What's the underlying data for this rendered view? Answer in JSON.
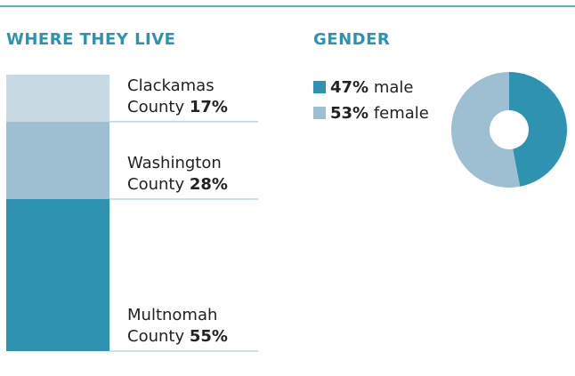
{
  "chart_data": [
    {
      "type": "stacked_bar",
      "title": "WHERE THEY LIVE",
      "series": [
        {
          "name": "Clackamas County",
          "color": "#c8dbe5",
          "values": [
            17
          ],
          "value_labels": [
            "17%"
          ]
        },
        {
          "name": "Washington County",
          "color": "#9dbfd1",
          "values": [
            28
          ],
          "value_labels": [
            "28%"
          ]
        },
        {
          "name": "Multnomah County",
          "color": "#2e93b0",
          "values": [
            55
          ],
          "value_labels": [
            "55%"
          ]
        }
      ]
    },
    {
      "type": "pie",
      "title": "GENDER",
      "categories": [
        "male",
        "female"
      ],
      "values": [
        47,
        53
      ],
      "value_labels": [
        "47%",
        "53%"
      ],
      "colors": [
        "#2e93b0",
        "#9dbfd1"
      ]
    }
  ]
}
